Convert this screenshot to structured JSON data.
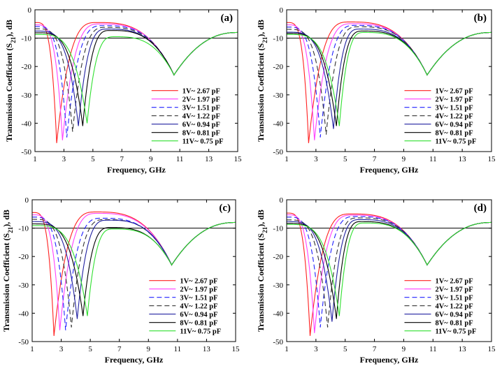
{
  "chart_data": [
    {
      "type": "line",
      "panel": "(a)",
      "xlabel": "Frequency, GHz",
      "ylabel": "Transmission Coefficient (S21), dB",
      "xlim": [
        1,
        15
      ],
      "ylim": [
        -50,
        0
      ],
      "xticks": [
        1,
        3,
        5,
        7,
        9,
        11,
        13,
        15
      ],
      "yticks": [
        0,
        -10,
        -20,
        -30,
        -40,
        -50
      ],
      "ref_line": -10,
      "series": [
        {
          "name": "1V~ 2.67 pF",
          "color": "#ff2020",
          "dash": "",
          "f1": 2.5,
          "d1": -47,
          "pk": 5.3,
          "pv": -4.5
        },
        {
          "name": "2V~ 1.97 pF",
          "color": "#ff40ff",
          "dash": "",
          "f1": 2.9,
          "d1": -46,
          "pk": 5.5,
          "pv": -5.0
        },
        {
          "name": "3V~ 1.51 pF",
          "color": "#2020ff",
          "dash": "7,4",
          "f1": 3.2,
          "d1": -45,
          "pk": 5.7,
          "pv": -5.6
        },
        {
          "name": "4V~ 1.22 pF",
          "color": "#333333",
          "dash": "7,4",
          "f1": 3.6,
          "d1": -43,
          "pk": 5.9,
          "pv": -6.2
        },
        {
          "name": "6V~ 0.94 pF",
          "color": "#2020a0",
          "dash": "",
          "f1": 4.0,
          "d1": -41,
          "pk": 6.0,
          "pv": -6.8
        },
        {
          "name": "8V~ 0.81 pF",
          "color": "#000000",
          "dash": "",
          "f1": 4.3,
          "d1": -41,
          "pk": 6.2,
          "pv": -7.3
        },
        {
          "name": "11V~ 0.75 pF",
          "color": "#30e030",
          "dash": "",
          "f1": 4.6,
          "d1": -40,
          "pk": 6.5,
          "pv": -9.5
        }
      ]
    },
    {
      "type": "line",
      "panel": "(b)",
      "xlabel": "Frequency, GHz",
      "ylabel": "Transmission Coefficient (S21), dB",
      "xlim": [
        1,
        15
      ],
      "ylim": [
        -50,
        0
      ],
      "xticks": [
        1,
        3,
        5,
        7,
        9,
        11,
        13,
        15
      ],
      "yticks": [
        0,
        -10,
        -20,
        -30,
        -40,
        -50
      ],
      "ref_line": -10,
      "series": [
        {
          "name": "1V~ 2.67 pF",
          "color": "#ff2020",
          "dash": "",
          "f1": 2.5,
          "d1": -47,
          "pk": 5.3,
          "pv": -4.3
        },
        {
          "name": "2V~ 1.97 pF",
          "color": "#ff40ff",
          "dash": "",
          "f1": 2.9,
          "d1": -46,
          "pk": 5.5,
          "pv": -4.9
        },
        {
          "name": "3V~ 1.51 pF",
          "color": "#2020ff",
          "dash": "7,4",
          "f1": 3.3,
          "d1": -45,
          "pk": 5.7,
          "pv": -5.5
        },
        {
          "name": "4V~ 1.22 pF",
          "color": "#333333",
          "dash": "7,4",
          "f1": 3.7,
          "d1": -44,
          "pk": 5.9,
          "pv": -6.0
        },
        {
          "name": "6V~ 0.94 pF",
          "color": "#2020a0",
          "dash": "",
          "f1": 4.2,
          "d1": -42,
          "pk": 6.0,
          "pv": -6.8
        },
        {
          "name": "8V~ 0.81 pF",
          "color": "#000000",
          "dash": "",
          "f1": 4.4,
          "d1": -41,
          "pk": 6.2,
          "pv": -7.5
        },
        {
          "name": "11V~ 0.75 pF",
          "color": "#30e030",
          "dash": "",
          "f1": 4.6,
          "d1": -41,
          "pk": 6.3,
          "pv": -8.0
        }
      ]
    },
    {
      "type": "line",
      "panel": "(c)",
      "xlabel": "Frequency, GHz",
      "ylabel": "Transmission Coefficient (S21), dB",
      "xlim": [
        1,
        15
      ],
      "ylim": [
        -50,
        0
      ],
      "xticks": [
        1,
        3,
        5,
        7,
        9,
        11,
        13,
        15
      ],
      "yticks": [
        0,
        -10,
        -20,
        -30,
        -40,
        -50
      ],
      "ref_line": -10,
      "series": [
        {
          "name": "1V~ 2.67 pF",
          "color": "#ff2020",
          "dash": "",
          "f1": 2.5,
          "d1": -48,
          "pk": 5.4,
          "pv": -4.3
        },
        {
          "name": "2V~ 1.97 pF",
          "color": "#ff40ff",
          "dash": "",
          "f1": 2.9,
          "d1": -46,
          "pk": 5.5,
          "pv": -4.8
        },
        {
          "name": "3V~ 1.51 pF",
          "color": "#2020ff",
          "dash": "7,4",
          "f1": 3.3,
          "d1": -46,
          "pk": 5.8,
          "pv": -6.5
        },
        {
          "name": "4V~ 1.22 pF",
          "color": "#333333",
          "dash": "7,4",
          "f1": 3.7,
          "d1": -45,
          "pk": 6.0,
          "pv": -7.0
        },
        {
          "name": "6V~ 0.94 pF",
          "color": "#2020a0",
          "dash": "",
          "f1": 4.1,
          "d1": -42,
          "pk": 6.2,
          "pv": -7.2
        },
        {
          "name": "8V~ 0.81 pF",
          "color": "#000000",
          "dash": "",
          "f1": 4.5,
          "d1": -41,
          "pk": 6.4,
          "pv": -9.8
        },
        {
          "name": "11V~ 0.75 pF",
          "color": "#30e030",
          "dash": "",
          "f1": 4.8,
          "d1": -41,
          "pk": 6.6,
          "pv": -10.3
        }
      ]
    },
    {
      "type": "line",
      "panel": "(d)",
      "xlabel": "Frequency, GHz",
      "ylabel": "Transmission Coefficient (S21), dB",
      "xlim": [
        1,
        15
      ],
      "ylim": [
        -50,
        0
      ],
      "xticks": [
        1,
        3,
        5,
        7,
        9,
        11,
        13,
        15
      ],
      "yticks": [
        0,
        -10,
        -20,
        -30,
        -40,
        -50
      ],
      "ref_line": -10,
      "series": [
        {
          "name": "1V~ 2.67 pF",
          "color": "#ff2020",
          "dash": "",
          "f1": 2.6,
          "d1": -48,
          "pk": 5.4,
          "pv": -5.0
        },
        {
          "name": "2V~ 1.97 pF",
          "color": "#ff40ff",
          "dash": "",
          "f1": 2.9,
          "d1": -47,
          "pk": 5.5,
          "pv": -5.4
        },
        {
          "name": "3V~ 1.51 pF",
          "color": "#2020ff",
          "dash": "7,4",
          "f1": 3.3,
          "d1": -45,
          "pk": 5.7,
          "pv": -5.9
        },
        {
          "name": "4V~ 1.22 pF",
          "color": "#333333",
          "dash": "7,4",
          "f1": 3.8,
          "d1": -45,
          "pk": 5.9,
          "pv": -6.4
        },
        {
          "name": "6V~ 0.94 pF",
          "color": "#2020a0",
          "dash": "",
          "f1": 4.1,
          "d1": -43,
          "pk": 6.0,
          "pv": -7.0
        },
        {
          "name": "8V~ 0.81 pF",
          "color": "#000000",
          "dash": "",
          "f1": 4.4,
          "d1": -42,
          "pk": 6.1,
          "pv": -7.7
        },
        {
          "name": "11V~ 0.75 pF",
          "color": "#30e030",
          "dash": "",
          "f1": 4.6,
          "d1": -41,
          "pk": 6.3,
          "pv": -8.2
        }
      ]
    }
  ]
}
